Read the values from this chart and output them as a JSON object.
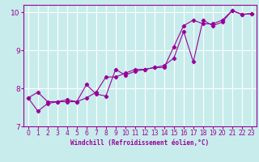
{
  "title": "",
  "xlabel": "Windchill (Refroidissement éolien,°C)",
  "ylabel": "",
  "background_color": "#c8ecec",
  "line_color": "#990099",
  "grid_color": "#ffffff",
  "xlim": [
    -0.5,
    23.5
  ],
  "ylim": [
    7,
    10.2
  ],
  "xticks": [
    0,
    1,
    2,
    3,
    4,
    5,
    6,
    7,
    8,
    9,
    10,
    11,
    12,
    13,
    14,
    15,
    16,
    17,
    18,
    19,
    20,
    21,
    22,
    23
  ],
  "yticks": [
    7,
    8,
    9,
    10
  ],
  "line1_x": [
    0,
    1,
    2,
    3,
    4,
    5,
    6,
    7,
    8,
    9,
    10,
    11,
    12,
    13,
    14,
    15,
    16,
    17,
    18,
    19,
    20,
    21,
    22,
    23
  ],
  "line1_y": [
    7.75,
    7.9,
    7.65,
    7.65,
    7.7,
    7.65,
    7.75,
    7.9,
    8.3,
    8.3,
    8.4,
    8.5,
    8.5,
    8.55,
    8.55,
    9.1,
    9.65,
    9.8,
    9.7,
    9.7,
    9.8,
    10.05,
    9.95,
    9.97
  ],
  "line2_x": [
    0,
    1,
    2,
    3,
    4,
    5,
    6,
    7,
    8,
    9,
    10,
    11,
    12,
    13,
    14,
    15,
    16,
    17,
    18,
    19,
    20,
    21,
    22,
    23
  ],
  "line2_y": [
    7.75,
    7.4,
    7.6,
    7.65,
    7.65,
    7.65,
    8.1,
    7.85,
    7.8,
    8.5,
    8.35,
    8.45,
    8.5,
    8.55,
    8.6,
    8.8,
    9.5,
    8.7,
    9.8,
    9.65,
    9.75,
    10.05,
    9.95,
    9.97
  ],
  "xlabel_fontsize": 5.5,
  "tick_fontsize": 5.5,
  "ytick_fontsize": 6.5,
  "linewidth": 0.8,
  "markersize": 2.2
}
